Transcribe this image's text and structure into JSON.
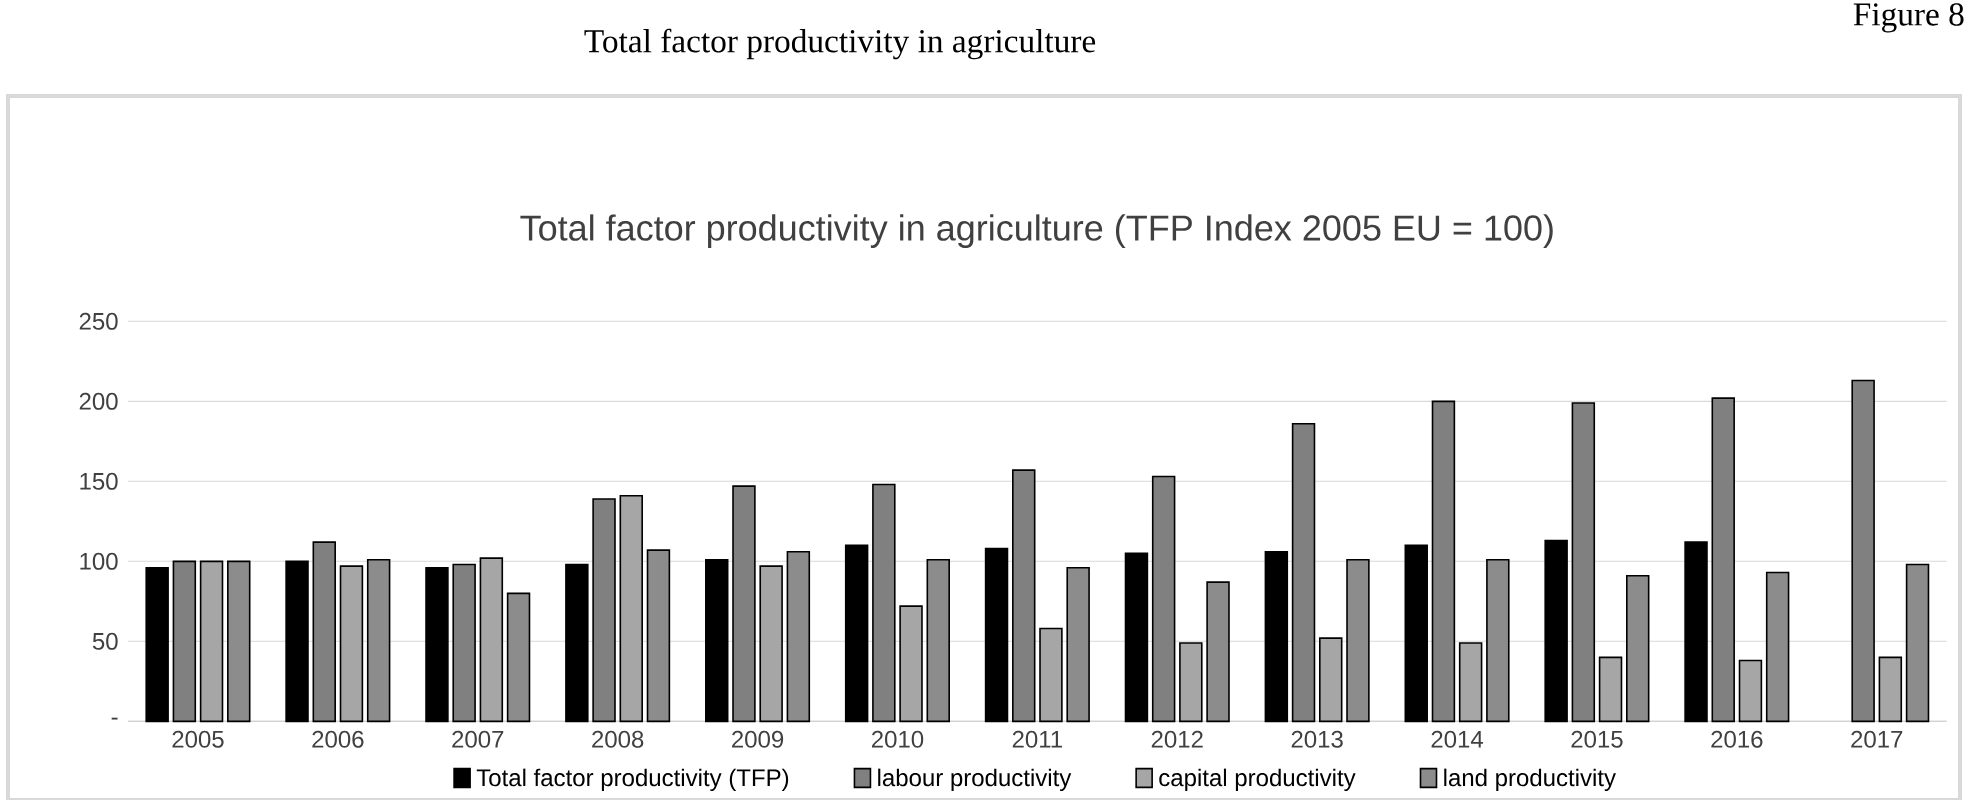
{
  "chart_data": {
    "type": "bar",
    "title": "Total factor productivity in agriculture",
    "subtitle": "Total factor productivity in agriculture (TFP Index 2005 EU = 100)",
    "annotations": [
      "Figure 8"
    ],
    "categories": [
      "2005",
      "2006",
      "2007",
      "2008",
      "2009",
      "2010",
      "2011",
      "2012",
      "2013",
      "2014",
      "2015",
      "2016",
      "2017"
    ],
    "series": [
      {
        "name": "Total factor productivity (TFP)",
        "color": "#000000",
        "values": [
          96,
          100,
          96,
          98,
          101,
          110,
          108,
          105,
          106,
          110,
          113,
          112,
          null
        ]
      },
      {
        "name": "labour productivity",
        "color": "#808080",
        "values": [
          100,
          112,
          98,
          139,
          147,
          148,
          157,
          153,
          186,
          200,
          199,
          202,
          213
        ]
      },
      {
        "name": "capital productivity",
        "color": "#a6a6a6",
        "values": [
          100,
          97,
          102,
          141,
          97,
          72,
          58,
          49,
          52,
          49,
          40,
          38,
          40
        ]
      },
      {
        "name": "land productivity",
        "color": "#8c8c8c",
        "values": [
          100,
          101,
          80,
          107,
          106,
          101,
          96,
          87,
          101,
          101,
          91,
          93,
          98
        ]
      }
    ],
    "ylim": [
      0,
      250
    ],
    "yticks": [
      {
        "value": 0,
        "label": "-"
      },
      50,
      100,
      150,
      200,
      250
    ],
    "grid": "y",
    "legend": "bottom"
  }
}
